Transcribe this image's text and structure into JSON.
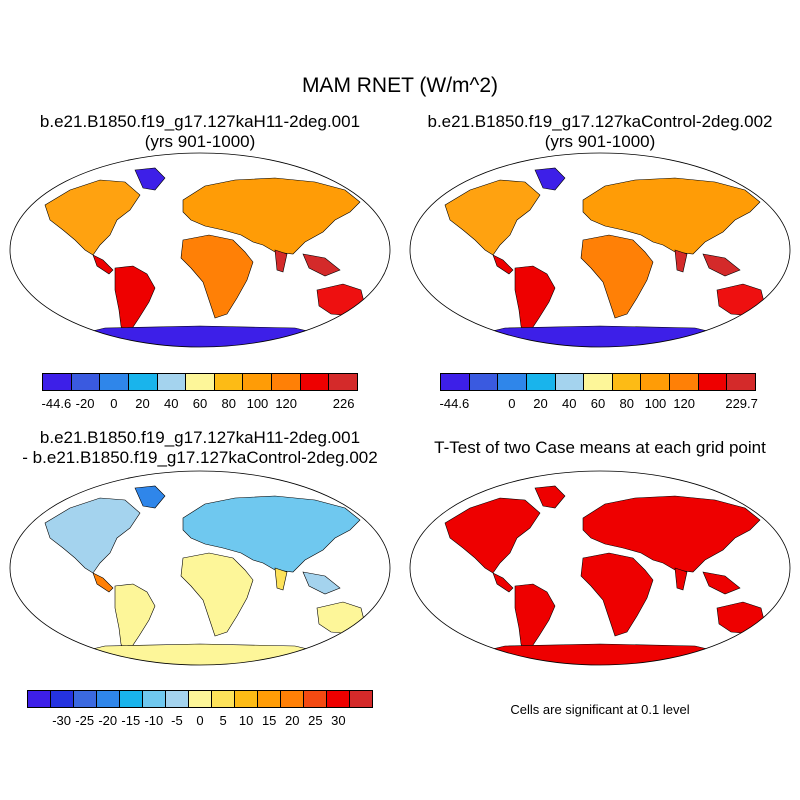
{
  "title": "MAM RNET (W/m^2)",
  "panels": {
    "top_left": {
      "title_line1": "b.e21.B1850.f19_g17.127kaH11-2deg.001",
      "title_line2": "(yrs 901-1000)"
    },
    "top_right": {
      "title_line1": "b.e21.B1850.f19_g17.127kaControl-2deg.002",
      "title_line2": "(yrs 901-1000)"
    },
    "bottom_left": {
      "title_line1": "b.e21.B1850.f19_g17.127kaH11-2deg.001",
      "title_line2": "- b.e21.B1850.f19_g17.127kaControl-2deg.002"
    },
    "bottom_right": {
      "title_line1": "T-Test of two Case means at each grid point"
    }
  },
  "colorbars": {
    "top_left": {
      "colors": [
        "#3d1fe8",
        "#3a5ae0",
        "#2f86ea",
        "#19b4ec",
        "#a4d3ee",
        "#fdf699",
        "#fdbb15",
        "#ff9c06",
        "#ff8006",
        "#ee0000",
        "#d42a2a"
      ],
      "labels": [
        "-44.6",
        "-20",
        "0",
        "20",
        "40",
        "60",
        "80",
        "100",
        "120",
        "",
        "226"
      ]
    },
    "top_right": {
      "colors": [
        "#3d1fe8",
        "#3a5ae0",
        "#2f86ea",
        "#19b4ec",
        "#a4d3ee",
        "#fdf699",
        "#fdbb15",
        "#ff9c06",
        "#ff8006",
        "#ee0000",
        "#d42a2a"
      ],
      "labels": [
        "-44.6",
        "",
        "0",
        "20",
        "40",
        "60",
        "80",
        "100",
        "120",
        "",
        "229.7"
      ]
    },
    "bottom": {
      "colors": [
        "#3d1fe8",
        "#2533e0",
        "#3b69e0",
        "#2f86ea",
        "#19b4ec",
        "#6fc8ef",
        "#a4d3ee",
        "#fdf699",
        "#fde25a",
        "#fdbb15",
        "#ff9c06",
        "#ff8006",
        "#f44a12",
        "#ee0000",
        "#d42a2a"
      ],
      "labels": [
        "-30",
        "-25",
        "-20",
        "-15",
        "-10",
        "-5",
        "0",
        "5",
        "10",
        "15",
        "20",
        "25",
        "30"
      ]
    }
  },
  "note": "Cells are significant at 0.1 level"
}
